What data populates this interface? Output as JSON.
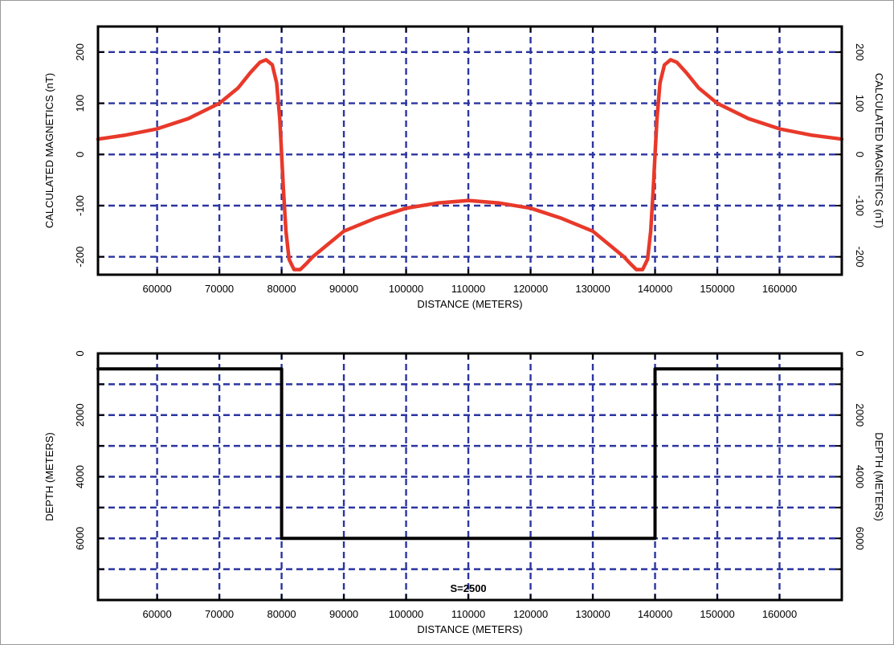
{
  "chart_data": [
    {
      "type": "line",
      "xlabel": "DISTANCE (METERS)",
      "ylabel": "CALCULATED MAGNETICS (nT)",
      "ylabel_right": "CALCULATED MAGNETICS (nT)",
      "xlim": [
        50500,
        170000
      ],
      "ylim": [
        -235,
        250
      ],
      "x_ticks": [
        60000,
        70000,
        80000,
        90000,
        100000,
        110000,
        120000,
        130000,
        140000,
        150000,
        160000
      ],
      "y_ticks": [
        -200,
        -100,
        0,
        100,
        200
      ],
      "y_tick_labels": [
        "-200",
        "-100",
        "0",
        "100",
        "200"
      ],
      "grid": true,
      "line_color": "#e8392a",
      "grid_color": "#2b35a0",
      "series": [
        {
          "x": [
            50500,
            55000,
            60000,
            65000,
            70000,
            73000,
            75000,
            76500,
            77500,
            78500,
            79200,
            79700,
            80000,
            80300,
            80700,
            81200,
            82000,
            83000,
            84000,
            85000,
            87000,
            90000,
            95000,
            100000,
            105000,
            110000,
            115000,
            120000,
            125000,
            130000,
            133000,
            135000,
            136000,
            137000,
            138000,
            138800,
            139300,
            139700,
            140000,
            140300,
            140800,
            141500,
            142500,
            143500,
            145000,
            147000,
            150000,
            155000,
            160000,
            165000,
            170000
          ],
          "y": [
            30,
            38,
            50,
            70,
            100,
            130,
            160,
            180,
            185,
            175,
            140,
            70,
            0,
            -70,
            -150,
            -205,
            -225,
            -225,
            -213,
            -200,
            -180,
            -150,
            -125,
            -105,
            -95,
            -90,
            -95,
            -105,
            -125,
            -150,
            -180,
            -200,
            -213,
            -225,
            -225,
            -205,
            -150,
            -70,
            0,
            70,
            140,
            175,
            185,
            180,
            160,
            130,
            100,
            70,
            50,
            38,
            30
          ]
        }
      ]
    },
    {
      "type": "line",
      "xlabel": "DISTANCE (METERS)",
      "ylabel": "DEPTH  (METERS)",
      "ylabel_right": "DEPTH (METERS)",
      "annotation": "S=2500",
      "xlim": [
        50500,
        170000
      ],
      "ylim": [
        0,
        8000
      ],
      "y_inverted": true,
      "x_ticks": [
        60000,
        70000,
        80000,
        90000,
        100000,
        110000,
        120000,
        130000,
        140000,
        150000,
        160000
      ],
      "y_ticks": [
        0,
        2000,
        4000,
        6000
      ],
      "y_tick_labels": [
        "0",
        "2000",
        "4000",
        "6000"
      ],
      "y_grid": [
        1000,
        2000,
        3000,
        4000,
        5000,
        6000,
        7000
      ],
      "grid": true,
      "line_color": "#000000",
      "grid_color": "#2b35a0",
      "series": [
        {
          "x": [
            50500,
            80000,
            80000,
            140000,
            140000,
            170000
          ],
          "y": [
            500,
            500,
            6000,
            6000,
            500,
            500
          ]
        }
      ]
    }
  ]
}
